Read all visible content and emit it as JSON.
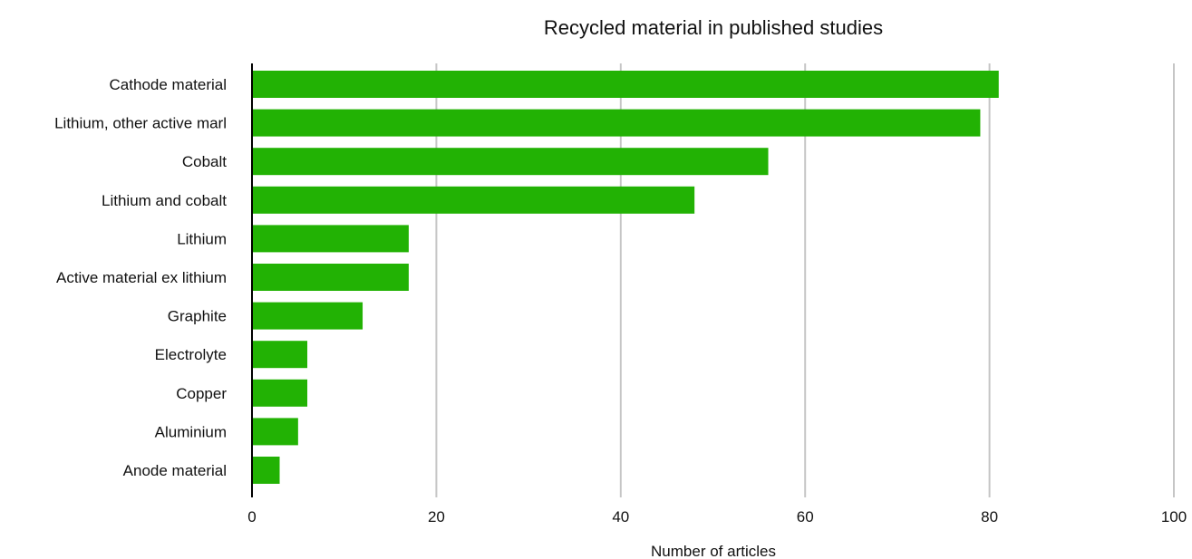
{
  "chart_data": {
    "type": "bar",
    "orientation": "horizontal",
    "title": "Recycled material in published studies",
    "xlabel": "Number of articles",
    "ylabel": "",
    "categories": [
      "Cathode material",
      "Lithium, other active marl",
      "Cobalt",
      "Lithium and cobalt",
      "Lithium",
      "Active material ex lithium",
      "Graphite",
      "Electrolyte",
      "Copper",
      "Aluminium",
      "Anode material"
    ],
    "values": [
      81,
      79,
      56,
      48,
      17,
      17,
      12,
      6,
      6,
      5,
      3
    ],
    "xlim": [
      0,
      100
    ],
    "xticks": [
      0,
      20,
      40,
      60,
      80,
      100
    ],
    "grid": true,
    "bar_color": "#22b204",
    "grid_color": "#c6c6c6",
    "axis_color": "#000000"
  }
}
